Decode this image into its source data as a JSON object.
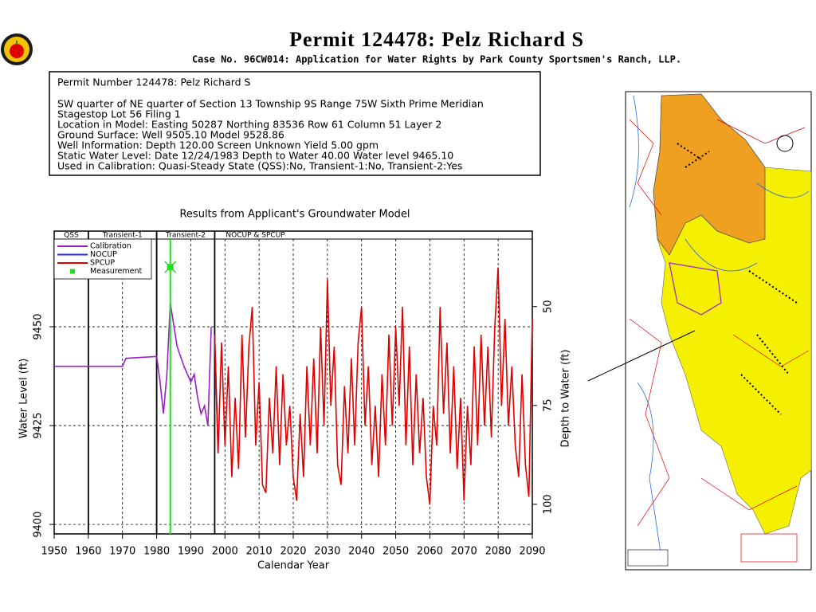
{
  "header": {
    "title": "Permit  124478:   Pelz Richard S",
    "subtitle": "Case No. 96CW014: Application for Water Rights by Park County Sportsmen's Ranch, LLP."
  },
  "info": {
    "lines": [
      "Permit Number 124478: Pelz Richard S",
      "SW quarter of NE quarter of Section 13 Township 9S Range 75W Sixth Prime Meridian",
      "Stagestop Lot 56 Filing 1",
      "Location in Model: Easting 50287 Northing  83536 Row  61 Column 51 Layer 2",
      "Ground Surface: Well  9505.10 Model  9528.86",
      "Well Information: Depth   120.00 Screen Unknown Yield       5.00 gpm",
      "Static Water Level: Date 12/24/1983 Depth to Water     40.00 Water level  9465.10",
      "Used in Calibration: Quasi-Steady State (QSS):No, Transient-1:No, Transient-2:Yes"
    ]
  },
  "chart_data": {
    "type": "line",
    "title": "Results from Applicant's Groundwater Model",
    "x_label": "Calendar Year",
    "y_label": "Water Level (ft)",
    "y2_label": "Depth to Water (ft)",
    "xlim": [
      1950,
      2090
    ],
    "xticks": [
      1950,
      1960,
      1970,
      1980,
      1990,
      2000,
      2010,
      2020,
      2030,
      2040,
      2050,
      2060,
      2070,
      2080,
      2090
    ],
    "ylim": [
      9397.6,
      9474.2
    ],
    "yticks": [
      9400,
      9425,
      9450
    ],
    "y2lim": [
      107.5,
      30.9
    ],
    "y2ticks": [
      50,
      75,
      100
    ],
    "grid": true,
    "legend": "upper left",
    "periods": [
      {
        "label": "QSS",
        "start": 1950,
        "end": 1960
      },
      {
        "label": "Transient-1",
        "start": 1960,
        "end": 1980
      },
      {
        "label": "Transient-2",
        "start": 1980,
        "end": 1997
      },
      {
        "label": "NOCUP  &  SPCUP",
        "start": 1997,
        "end": 2090
      }
    ],
    "series": [
      {
        "name": "Calibration",
        "color": "#9a1fc8",
        "kind": "line",
        "x": [
          1950,
          1970,
          1971,
          1980,
          1981,
          1982,
          1983,
          1984,
          1986,
          1988,
          1990,
          1991,
          1992,
          1993,
          1994,
          1995,
          1996
        ],
        "values": [
          9440,
          9440,
          9442,
          9442.5,
          9436,
          9428,
          9438,
          9456,
          9445,
          9440,
          9436,
          9438,
          9432,
          9428,
          9430,
          9425,
          9450
        ]
      },
      {
        "name": "NOCUP",
        "color": "#2a2af0",
        "kind": "line",
        "x": [
          1997,
          1998
        ],
        "values": [
          9448,
          9418
        ]
      },
      {
        "name": "SPCUP",
        "color": "#e00000",
        "kind": "line",
        "x": [
          1997,
          1998,
          1999,
          2000,
          2001,
          2002,
          2003,
          2004,
          2005,
          2006,
          2007,
          2008,
          2009,
          2010,
          2011,
          2012,
          2013,
          2014,
          2015,
          2016,
          2017,
          2018,
          2019,
          2020,
          2021,
          2022,
          2023,
          2024,
          2025,
          2026,
          2027,
          2028,
          2029,
          2030,
          2031,
          2032,
          2033,
          2034,
          2035,
          2036,
          2037,
          2038,
          2039,
          2040,
          2041,
          2042,
          2043,
          2044,
          2045,
          2046,
          2047,
          2048,
          2049,
          2050,
          2051,
          2052,
          2053,
          2054,
          2055,
          2056,
          2057,
          2058,
          2059,
          2060,
          2061,
          2062,
          2063,
          2064,
          2065,
          2066,
          2067,
          2068,
          2069,
          2070,
          2071,
          2072,
          2073,
          2074,
          2075,
          2076,
          2077,
          2078,
          2079,
          2080,
          2081,
          2082,
          2083,
          2084,
          2085,
          2086,
          2087,
          2088,
          2089,
          2090
        ],
        "values": [
          9448,
          9418,
          9446,
          9420,
          9440,
          9412,
          9432,
          9414,
          9448,
          9422,
          9445,
          9455,
          9420,
          9436,
          9410,
          9408,
          9432,
          9418,
          9440,
          9415,
          9438,
          9420,
          9430,
          9412,
          9406,
          9428,
          9412,
          9440,
          9420,
          9442,
          9418,
          9450,
          9425,
          9462,
          9430,
          9445,
          9415,
          9410,
          9435,
          9418,
          9442,
          9420,
          9446,
          9455,
          9425,
          9440,
          9415,
          9430,
          9412,
          9438,
          9420,
          9448,
          9425,
          9450,
          9430,
          9455,
          9420,
          9445,
          9415,
          9438,
          9418,
          9432,
          9412,
          9405,
          9430,
          9420,
          9455,
          9428,
          9446,
          9418,
          9440,
          9414,
          9432,
          9406,
          9430,
          9415,
          9445,
          9420,
          9448,
          9425,
          9445,
          9422,
          9450,
          9465,
          9430,
          9452,
          9425,
          9440,
          9420,
          9412,
          9438,
          9415,
          9407,
          9452
        ]
      },
      {
        "name": "Measurement",
        "color": "#22dd22",
        "kind": "marker",
        "x": [
          1984
        ],
        "values": [
          9465.1
        ]
      }
    ]
  }
}
